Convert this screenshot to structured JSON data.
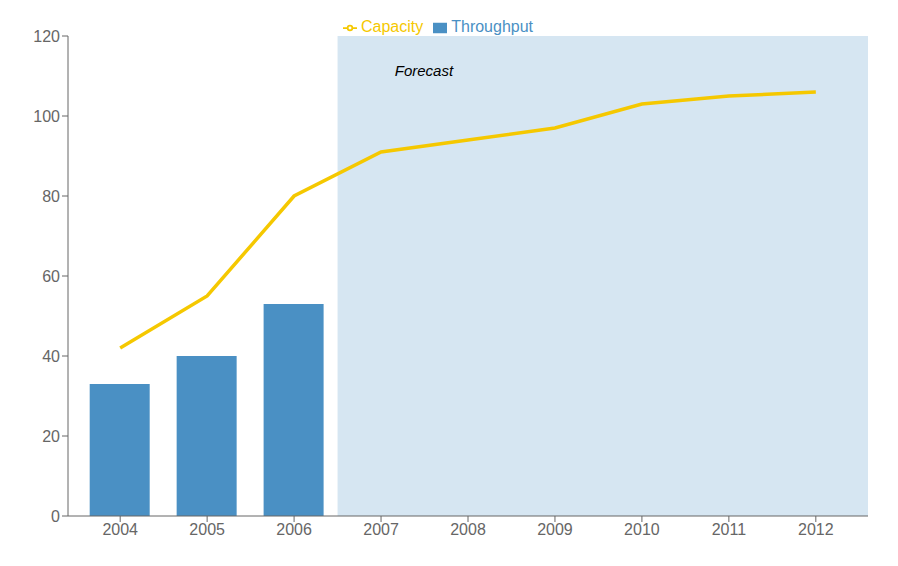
{
  "chart_data": {
    "type": "bar",
    "x": [
      2004,
      2005,
      2006,
      2007,
      2008,
      2009,
      2010,
      2011,
      2012
    ],
    "series": [
      {
        "name": "Throughput",
        "type": "bar",
        "color": "#4a90c4",
        "values": [
          33,
          40,
          53,
          null,
          null,
          null,
          null,
          null,
          null
        ]
      },
      {
        "name": "Capacity",
        "type": "line",
        "color": "#f5c800",
        "values": [
          42,
          55,
          80,
          91,
          94,
          97,
          103,
          105,
          106
        ]
      }
    ],
    "xlim": [
      2003.4,
      2012.6
    ],
    "xticks": [
      2004,
      2005,
      2006,
      2007,
      2008,
      2009,
      2010,
      2011,
      2012
    ],
    "ylim": [
      0,
      120
    ],
    "yticks": [
      0,
      20,
      40,
      60,
      80,
      100,
      120
    ],
    "spans": [
      {
        "x0": 2006.5,
        "x1": 2012.6,
        "color": "#d6e6f2"
      }
    ],
    "annotations": [
      {
        "text": "Forecast",
        "x": 2007.1,
        "y": 114
      }
    ],
    "legend": "top",
    "grid": false
  }
}
